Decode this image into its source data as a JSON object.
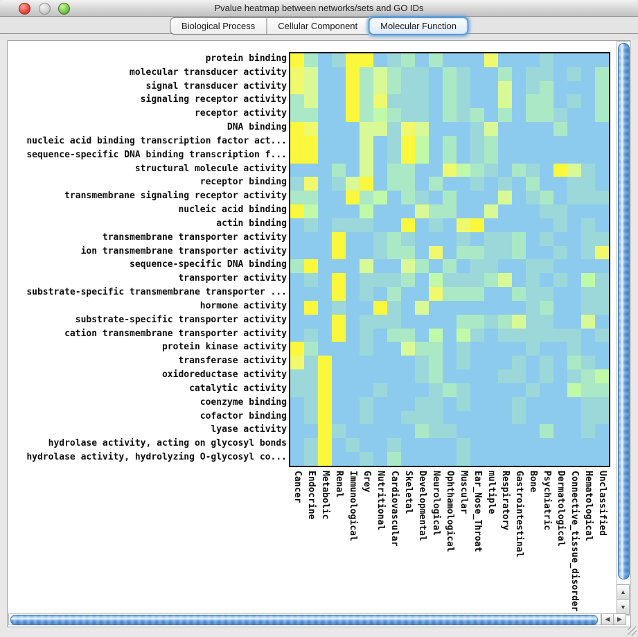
{
  "window": {
    "title": "Pvalue heatmap between networks/sets and GO IDs"
  },
  "tabs": {
    "items": [
      {
        "label": "Biological Process",
        "selected": false
      },
      {
        "label": "Cellular Component",
        "selected": false
      },
      {
        "label": "Molecular Function",
        "selected": true
      }
    ]
  },
  "scrollbars": {
    "up_arrow": "▲",
    "down_arrow": "▼",
    "left_arrow": "◀",
    "right_arrow": "▶"
  },
  "chart_data": {
    "type": "heatmap",
    "title": "Pvalue heatmap between networks/sets and GO IDs",
    "selected_ontology": "Molecular Function",
    "legend_note": "cell color encodes p-value significance: B lowest (blue) through T, M, LG, G, LY to Y highest (yellow)",
    "palette": {
      "B": "#8DCBEE",
      "T": "#9CD8D9",
      "M": "#ABE8C5",
      "LG": "#C0FAA9",
      "G": "#D8F996",
      "LY": "#EFF96B",
      "Y": "#FBF73C"
    },
    "rows": [
      "protein binding",
      "molecular transducer activity",
      "signal transducer activity",
      "signaling receptor activity",
      "receptor activity",
      "DNA binding",
      "nucleic acid binding transcription factor act...",
      "sequence-specific DNA binding transcription f...",
      "structural molecule activity",
      "receptor binding",
      "transmembrane signaling receptor activity",
      "nucleic acid binding",
      "actin binding",
      "transmembrane transporter activity",
      "ion transmembrane transporter activity",
      "sequence-specific DNA binding",
      "transporter activity",
      "substrate-specific transmembrane transporter ...",
      "hormone activity",
      "substrate-specific transporter activity",
      "cation transmembrane transporter activity",
      "protein kinase activity",
      "transferase activity",
      "oxidoreductase activity",
      "catalytic activity",
      "coenzyme binding",
      "cofactor binding",
      "lyase activity",
      "hydrolase activity, acting on glycosyl bonds",
      "hydrolase activity, hydrolyzing O-glycosyl co..."
    ],
    "columns": [
      "Cancer",
      "Endocrine",
      "Metabolic",
      "Renal",
      "Immunological",
      "Grey",
      "Nutritional",
      "Cardiovascular",
      "Skeletal",
      "Developmental",
      "Neurological",
      "Ophthamological",
      "Muscular",
      "Ear_Nose_Throat",
      "multiple",
      "Respiratory",
      "Gastrointestinal",
      "Bone",
      "Psychiatric",
      "Dermatological",
      "Connective_tissue_disorder",
      "Hematological",
      "Unclassified"
    ],
    "cells": [
      "Y M B T Y Y B T M B M B B B LY B B B T B B B B",
      "LY G B B Y M G M T T B M T B B M B T T B T B M",
      "LY G B B Y M G M T T B M T B B G B T M B B B M",
      "M G B B Y M LY T T T B M T B B G B M M B T B M",
      "M M B B Y M LG M T T B M T M B M B M M T B B M",
      "Y LY B B B G G T LY G B B B T G B B B B M B B B",
      "Y Y B B B G B T Y LG B M B T M B B B B B B B B",
      "Y Y B B B G B T Y LG B M B T M B B B B B B B B",
      "B B B M B G B M M B B LY LG M T B M T B Y G T B",
      "T LY B T G Y B M M B M B B T B T B M B B T T B",
      "M M B B Y M LG B M T B M B B B G B T M B T T T",
      "Y LG B B B LG B B B G M M B B G B B B T T B B B",
      "B T B T T T B B Y B T B LY Y B B B B B T B T B",
      "B B B Y B B T M T B B B T B T T M B T B B T T",
      "B B B Y B B T M M B LY B M M T T M B B T B T LY",
      "M Y B B B G B B G M B M B T T B B T T B B B B",
      "B T B Y B T T T M B LG T T T M G B T B T B LG T",
      "B B B Y B T B M B B LY M M M B B M T T B B T T",
      "B Y B T B B Y T B G B B B B B B B T M B B T T",
      "B B B Y B T T T B B B B M M T M G T T B B G B",
      "B T B Y B T B M M B LG B LG T B T T T T T T B T",
      "Y M B B B T B B G M M B T B B B B T B B T B B",
      "LY T Y B B B B B B T M B T B B B T B T B M T B",
      "T T Y B B B B B B T M B B B B T T B T B T M LG",
      "T T Y B B B T B B B T M T B B B B T B B LG M M",
      "B T Y B B T B B B T T B T B B B T B B B B T T",
      "B T Y B B T B B T T T B B B B B T B B B B T T",
      "B B Y T B B B B B M T T B B B B B B M B B T B",
      "B T Y B T B B T B B B B T B B B B B B B B B B",
      "B T Y B B T B M B B B B T B B B B B B B B B B"
    ]
  }
}
